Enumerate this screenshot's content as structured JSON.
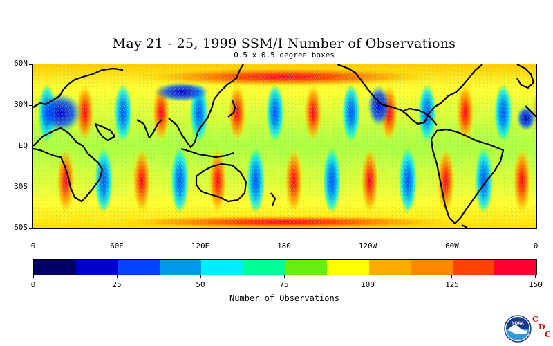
{
  "title": "May 21 - 25, 1999 SSM/I Number of Observations",
  "subtitle": "0.5 x 0.5 degree boxes",
  "map": {
    "lat_labels": [
      "60N",
      "30N",
      "EQ",
      "30S",
      "60S"
    ],
    "lon_labels": [
      "0",
      "60E",
      "120E",
      "180",
      "120W",
      "60W",
      "0"
    ],
    "lat_range": [
      -60,
      60
    ],
    "lon_range": [
      0,
      360
    ]
  },
  "colorbar": {
    "title": "Number of Observations",
    "tick_labels": [
      "0",
      "25",
      "50",
      "75",
      "100",
      "125",
      "150"
    ],
    "colors": [
      "#000066",
      "#0000cc",
      "#0044ff",
      "#0099ee",
      "#00eeff",
      "#00ff99",
      "#66ee11",
      "#ffff00",
      "#ffaa00",
      "#ff8800",
      "#ff4400",
      "#ff0033"
    ],
    "range": [
      0,
      150
    ]
  },
  "logo": {
    "text": "NOAA",
    "c1": "C",
    "d": "D",
    "c2": "C"
  }
}
